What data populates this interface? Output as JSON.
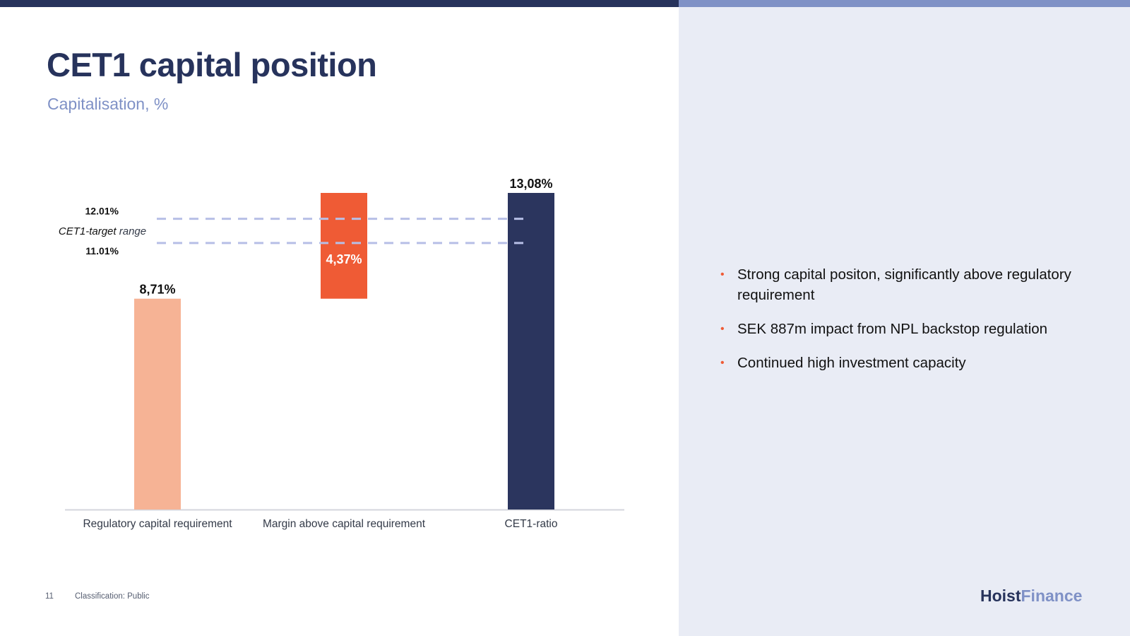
{
  "header": {
    "title": "CET1 capital position",
    "subtitle": "Capitalisation, %"
  },
  "chart_data": {
    "type": "bar",
    "subtype": "waterfall",
    "categories": [
      "Regulatory capital requirement",
      "Margin above capital requirement",
      "CET1-ratio"
    ],
    "bars": [
      {
        "category": "Regulatory capital requirement",
        "base": 0,
        "value": 8.71,
        "label": "8,71%",
        "color": "#f6b395",
        "label_position": "above"
      },
      {
        "category": "Margin above capital requirement",
        "base": 8.71,
        "value": 4.37,
        "label": "4,37%",
        "color": "#ef5b35",
        "label_position": "inside"
      },
      {
        "category": "CET1-ratio",
        "base": 0,
        "value": 13.08,
        "label": "13,08%",
        "color": "#2b355e",
        "label_position": "above"
      }
    ],
    "target_range": {
      "label_emphasis": "CET1-target",
      "label_rest": " range",
      "upper": 12.01,
      "upper_label": "12.01%",
      "lower": 11.01,
      "lower_label": "11.01%",
      "color": "#b7bfe6",
      "style": "dashed"
    },
    "ylim": [
      0,
      13.08
    ],
    "y_axis_visible": false,
    "grid": false,
    "legend": "none"
  },
  "bullets": [
    "Strong capital positon, significantly above regulatory requirement",
    "SEK 887m impact from NPL backstop regulation",
    "Continued high investment capacity"
  ],
  "bullet_symbol": "•",
  "footer": {
    "page_number": "11",
    "classification": "Classification: Public"
  },
  "logo": {
    "part1": "Hoist",
    "part2": "Finance"
  },
  "colors": {
    "navy": "#27335c",
    "accent_blue": "#7f91c6",
    "panel_bg": "#e9ecf5",
    "orange": "#ef5b35",
    "peach": "#f6b395"
  }
}
